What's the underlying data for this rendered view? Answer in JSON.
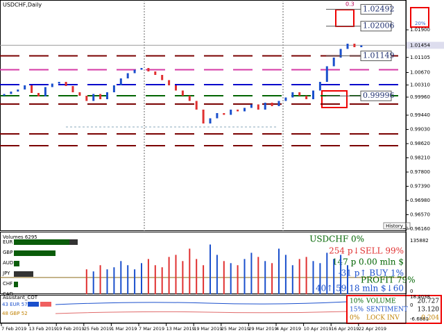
{
  "header": {
    "symbol": "USDCHF,Daily"
  },
  "price_axis": {
    "ylim": [
      0.961,
      1.0276
    ],
    "ticks": [
      {
        "value": 1.019,
        "label": "1.01900"
      },
      {
        "value": 1.01105,
        "label": "1.01105"
      },
      {
        "value": 1.0067,
        "label": "1.00670"
      },
      {
        "value": 1.0031,
        "label": "1.00310"
      },
      {
        "value": 0.9996,
        "label": "0.99960"
      },
      {
        "value": 0.9944,
        "label": "0.99440"
      },
      {
        "value": 0.9903,
        "label": "0.99030"
      },
      {
        "value": 0.9862,
        "label": "0.98620"
      },
      {
        "value": 0.9821,
        "label": "0.98210"
      },
      {
        "value": 0.978,
        "label": "0.97800"
      },
      {
        "value": 0.9739,
        "label": "0.97390"
      },
      {
        "value": 0.9698,
        "label": "0.96980"
      },
      {
        "value": 0.9657,
        "label": "0.96570"
      },
      {
        "value": 0.9616,
        "label": "0.96160"
      }
    ],
    "current": {
      "value": 1.01454,
      "label": "1.01454"
    }
  },
  "candles": {
    "open": [
      1.0,
      1.0005,
      1.0012,
      1.0018,
      1.003,
      1.0008,
      0.9998,
      1.0025,
      1.0035,
      1.004,
      1.0028,
      1.001,
      1.0,
      0.9985,
      1.0005,
      0.999,
      1.001,
      1.003,
      1.005,
      1.0065,
      1.0075,
      1.008,
      1.007,
      1.006,
      1.0045,
      1.003,
      1.0015,
      1.0,
      0.9985,
      0.996,
      0.992,
      0.9935,
      0.995,
      0.9945,
      0.996,
      0.9955,
      0.9965,
      0.9975,
      0.996,
      0.998,
      0.997,
      0.9985,
      0.9995,
      1.001,
      1.0,
      0.999,
      1.0015,
      1.004,
      1.0085,
      1.011,
      1.0135,
      1.015,
      1.014
    ],
    "close": [
      1.0005,
      1.0012,
      1.0018,
      1.003,
      1.0008,
      0.9998,
      1.0025,
      1.0035,
      1.004,
      1.0028,
      1.001,
      1.0,
      0.9985,
      1.0005,
      0.999,
      1.001,
      1.003,
      1.005,
      1.0065,
      1.0075,
      1.008,
      1.007,
      1.006,
      1.0045,
      1.003,
      1.0015,
      1.0,
      0.9985,
      0.996,
      0.992,
      0.9935,
      0.995,
      0.9945,
      0.996,
      0.9955,
      0.9965,
      0.9975,
      0.996,
      0.998,
      0.997,
      0.9985,
      0.9995,
      1.001,
      1.0,
      0.999,
      1.0015,
      1.004,
      1.0085,
      1.011,
      1.0135,
      1.015,
      1.014,
      1.0145
    ]
  },
  "levels": [
    {
      "value": 1.0115,
      "color": "#7a0000"
    },
    {
      "value": 1.0075,
      "color": "#d63aa6"
    },
    {
      "value": 1.0032,
      "color": "#0000cc"
    },
    {
      "value": 1.0,
      "color": "#006400"
    },
    {
      "value": 0.9976,
      "color": "#7a0000"
    },
    {
      "value": 0.989,
      "color": "#7a0000"
    },
    {
      "value": 0.9856,
      "color": "#7a0000"
    }
  ],
  "price_boxes": [
    {
      "value": 1.02492,
      "label": "1.02492"
    },
    {
      "value": 1.02006,
      "label": "1.02006"
    },
    {
      "value": 1.01149,
      "label": "1.01149"
    },
    {
      "value": 0.99996,
      "label": "0.99996"
    }
  ],
  "marks": {
    "top": "0.3",
    "pct": "20%",
    "history": "History_L"
  },
  "dates": [
    "7 Feb 2019",
    "13 Feb 2019",
    "19 Feb 2019",
    "25 Feb 2019",
    "1 Mar 2019",
    "7 Mar 2019",
    "13 Mar 2019",
    "19 Mar 2019",
    "25 Mar 2019",
    "29 Mar 2019",
    "4 Apr 2019",
    "10 Apr 2019",
    "16 Apr 2019",
    "22 Apr 2019"
  ],
  "volumes": {
    "title": "Volumes 6295",
    "ylim": [
      0,
      135882
    ],
    "ticks": [
      135882,
      0
    ],
    "currencies": [
      "EUR",
      "GBP",
      "AUD",
      "JPY",
      "CHF",
      "CAD"
    ],
    "values": [
      60000,
      55000,
      70000,
      60000,
      65000,
      80000,
      70000,
      60000,
      75000,
      85000,
      70000,
      65000,
      90000,
      95000,
      80000,
      110000,
      85000,
      70000,
      120000,
      95000,
      80000,
      75000,
      70000,
      85000,
      100000,
      90000,
      80000,
      75000,
      110000,
      95000,
      70000,
      85000,
      90000,
      80000,
      75000,
      100000,
      85000,
      95000,
      70000
    ]
  },
  "info": {
    "line1": "USDCHF 0%",
    "line2": "254 p↓SELL 99%",
    "line3": "147 p   0.00 mln $",
    "line4": "-31 p↑   BUY 1%",
    "line5": "PROFIT 79%",
    "line6": "40↑ 59.18 mln $↓60"
  },
  "cot": {
    "title": "Assistant_COT",
    "eur": "43 EUR 57",
    "gbp": "48 GBP 52",
    "ticks": [
      "18.4038",
      "0",
      "-6.6881"
    ],
    "rows": [
      [
        "10%",
        "VOLUME",
        "20.727"
      ],
      [
        "15%",
        "SENTIMENT",
        "13.120"
      ],
      [
        "0%",
        "LOCK INV",
        "0.204"
      ]
    ]
  }
}
